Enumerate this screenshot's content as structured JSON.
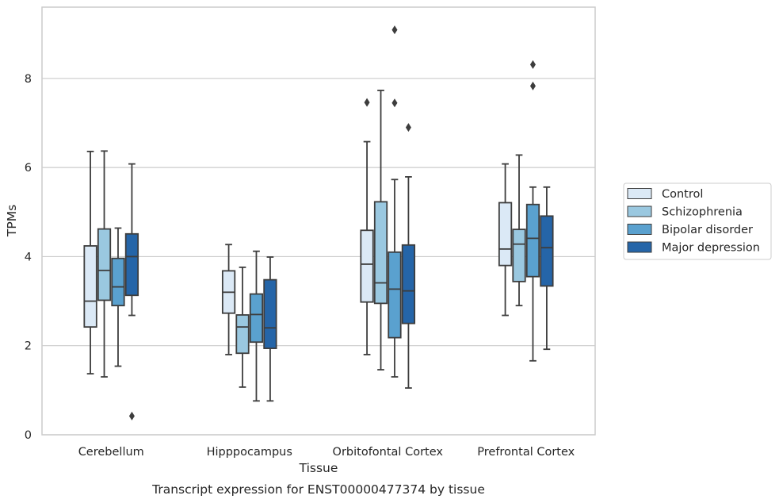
{
  "chart_data": {
    "type": "box",
    "caption": "Transcript expression for ENST00000477374 by tissue",
    "xlabel": "Tissue",
    "ylabel": "TPMs",
    "ylim": [
      0,
      9.6
    ],
    "yticks": [
      0,
      2,
      4,
      6,
      8
    ],
    "grid": "horizontal",
    "legend_position": "right",
    "categories": [
      "Cerebellum",
      "Hipppocampus",
      "Orbitofontal Cortex",
      "Prefrontal Cortex"
    ],
    "series": [
      {
        "name": "Control",
        "color": "#dbe9f6",
        "boxes": [
          {
            "whislo": 1.37,
            "q1": 2.42,
            "med": 3.0,
            "q3": 4.24,
            "whishi": 6.36,
            "fliers": []
          },
          {
            "whislo": 1.8,
            "q1": 2.73,
            "med": 3.2,
            "q3": 3.68,
            "whishi": 4.27,
            "fliers": []
          },
          {
            "whislo": 1.8,
            "q1": 2.98,
            "med": 3.83,
            "q3": 4.59,
            "whishi": 6.58,
            "fliers": [
              7.46
            ]
          },
          {
            "whislo": 2.68,
            "q1": 3.8,
            "med": 4.17,
            "q3": 5.21,
            "whishi": 6.08,
            "fliers": []
          }
        ]
      },
      {
        "name": "Schizophrenia",
        "color": "#9ac8e0",
        "boxes": [
          {
            "whislo": 1.3,
            "q1": 3.02,
            "med": 3.69,
            "q3": 4.62,
            "whishi": 6.37,
            "fliers": []
          },
          {
            "whislo": 1.07,
            "q1": 1.83,
            "med": 2.42,
            "q3": 2.69,
            "whishi": 3.76,
            "fliers": []
          },
          {
            "whislo": 1.46,
            "q1": 2.95,
            "med": 3.41,
            "q3": 5.23,
            "whishi": 7.73,
            "fliers": []
          },
          {
            "whislo": 2.9,
            "q1": 3.44,
            "med": 4.28,
            "q3": 4.61,
            "whishi": 6.28,
            "fliers": []
          }
        ]
      },
      {
        "name": "Bipolar disorder",
        "color": "#5aa1cf",
        "boxes": [
          {
            "whislo": 1.54,
            "q1": 2.9,
            "med": 3.32,
            "q3": 3.96,
            "whishi": 4.64,
            "fliers": []
          },
          {
            "whislo": 0.76,
            "q1": 2.08,
            "med": 2.7,
            "q3": 3.16,
            "whishi": 4.12,
            "fliers": []
          },
          {
            "whislo": 1.3,
            "q1": 2.18,
            "med": 3.27,
            "q3": 4.1,
            "whishi": 5.73,
            "fliers": [
              7.45,
              9.09
            ]
          },
          {
            "whislo": 1.66,
            "q1": 3.55,
            "med": 4.41,
            "q3": 5.17,
            "whishi": 5.56,
            "fliers": [
              7.83,
              8.31
            ]
          }
        ]
      },
      {
        "name": "Major depression",
        "color": "#2565a8",
        "boxes": [
          {
            "whislo": 2.68,
            "q1": 3.13,
            "med": 4.0,
            "q3": 4.51,
            "whishi": 6.08,
            "fliers": [
              0.42
            ]
          },
          {
            "whislo": 0.76,
            "q1": 1.94,
            "med": 2.4,
            "q3": 3.48,
            "whishi": 3.99,
            "fliers": []
          },
          {
            "whislo": 1.05,
            "q1": 2.5,
            "med": 3.23,
            "q3": 4.26,
            "whishi": 5.79,
            "fliers": [
              6.9
            ]
          },
          {
            "whislo": 1.92,
            "q1": 3.34,
            "med": 4.2,
            "q3": 4.91,
            "whishi": 5.56,
            "fliers": []
          }
        ]
      }
    ]
  }
}
